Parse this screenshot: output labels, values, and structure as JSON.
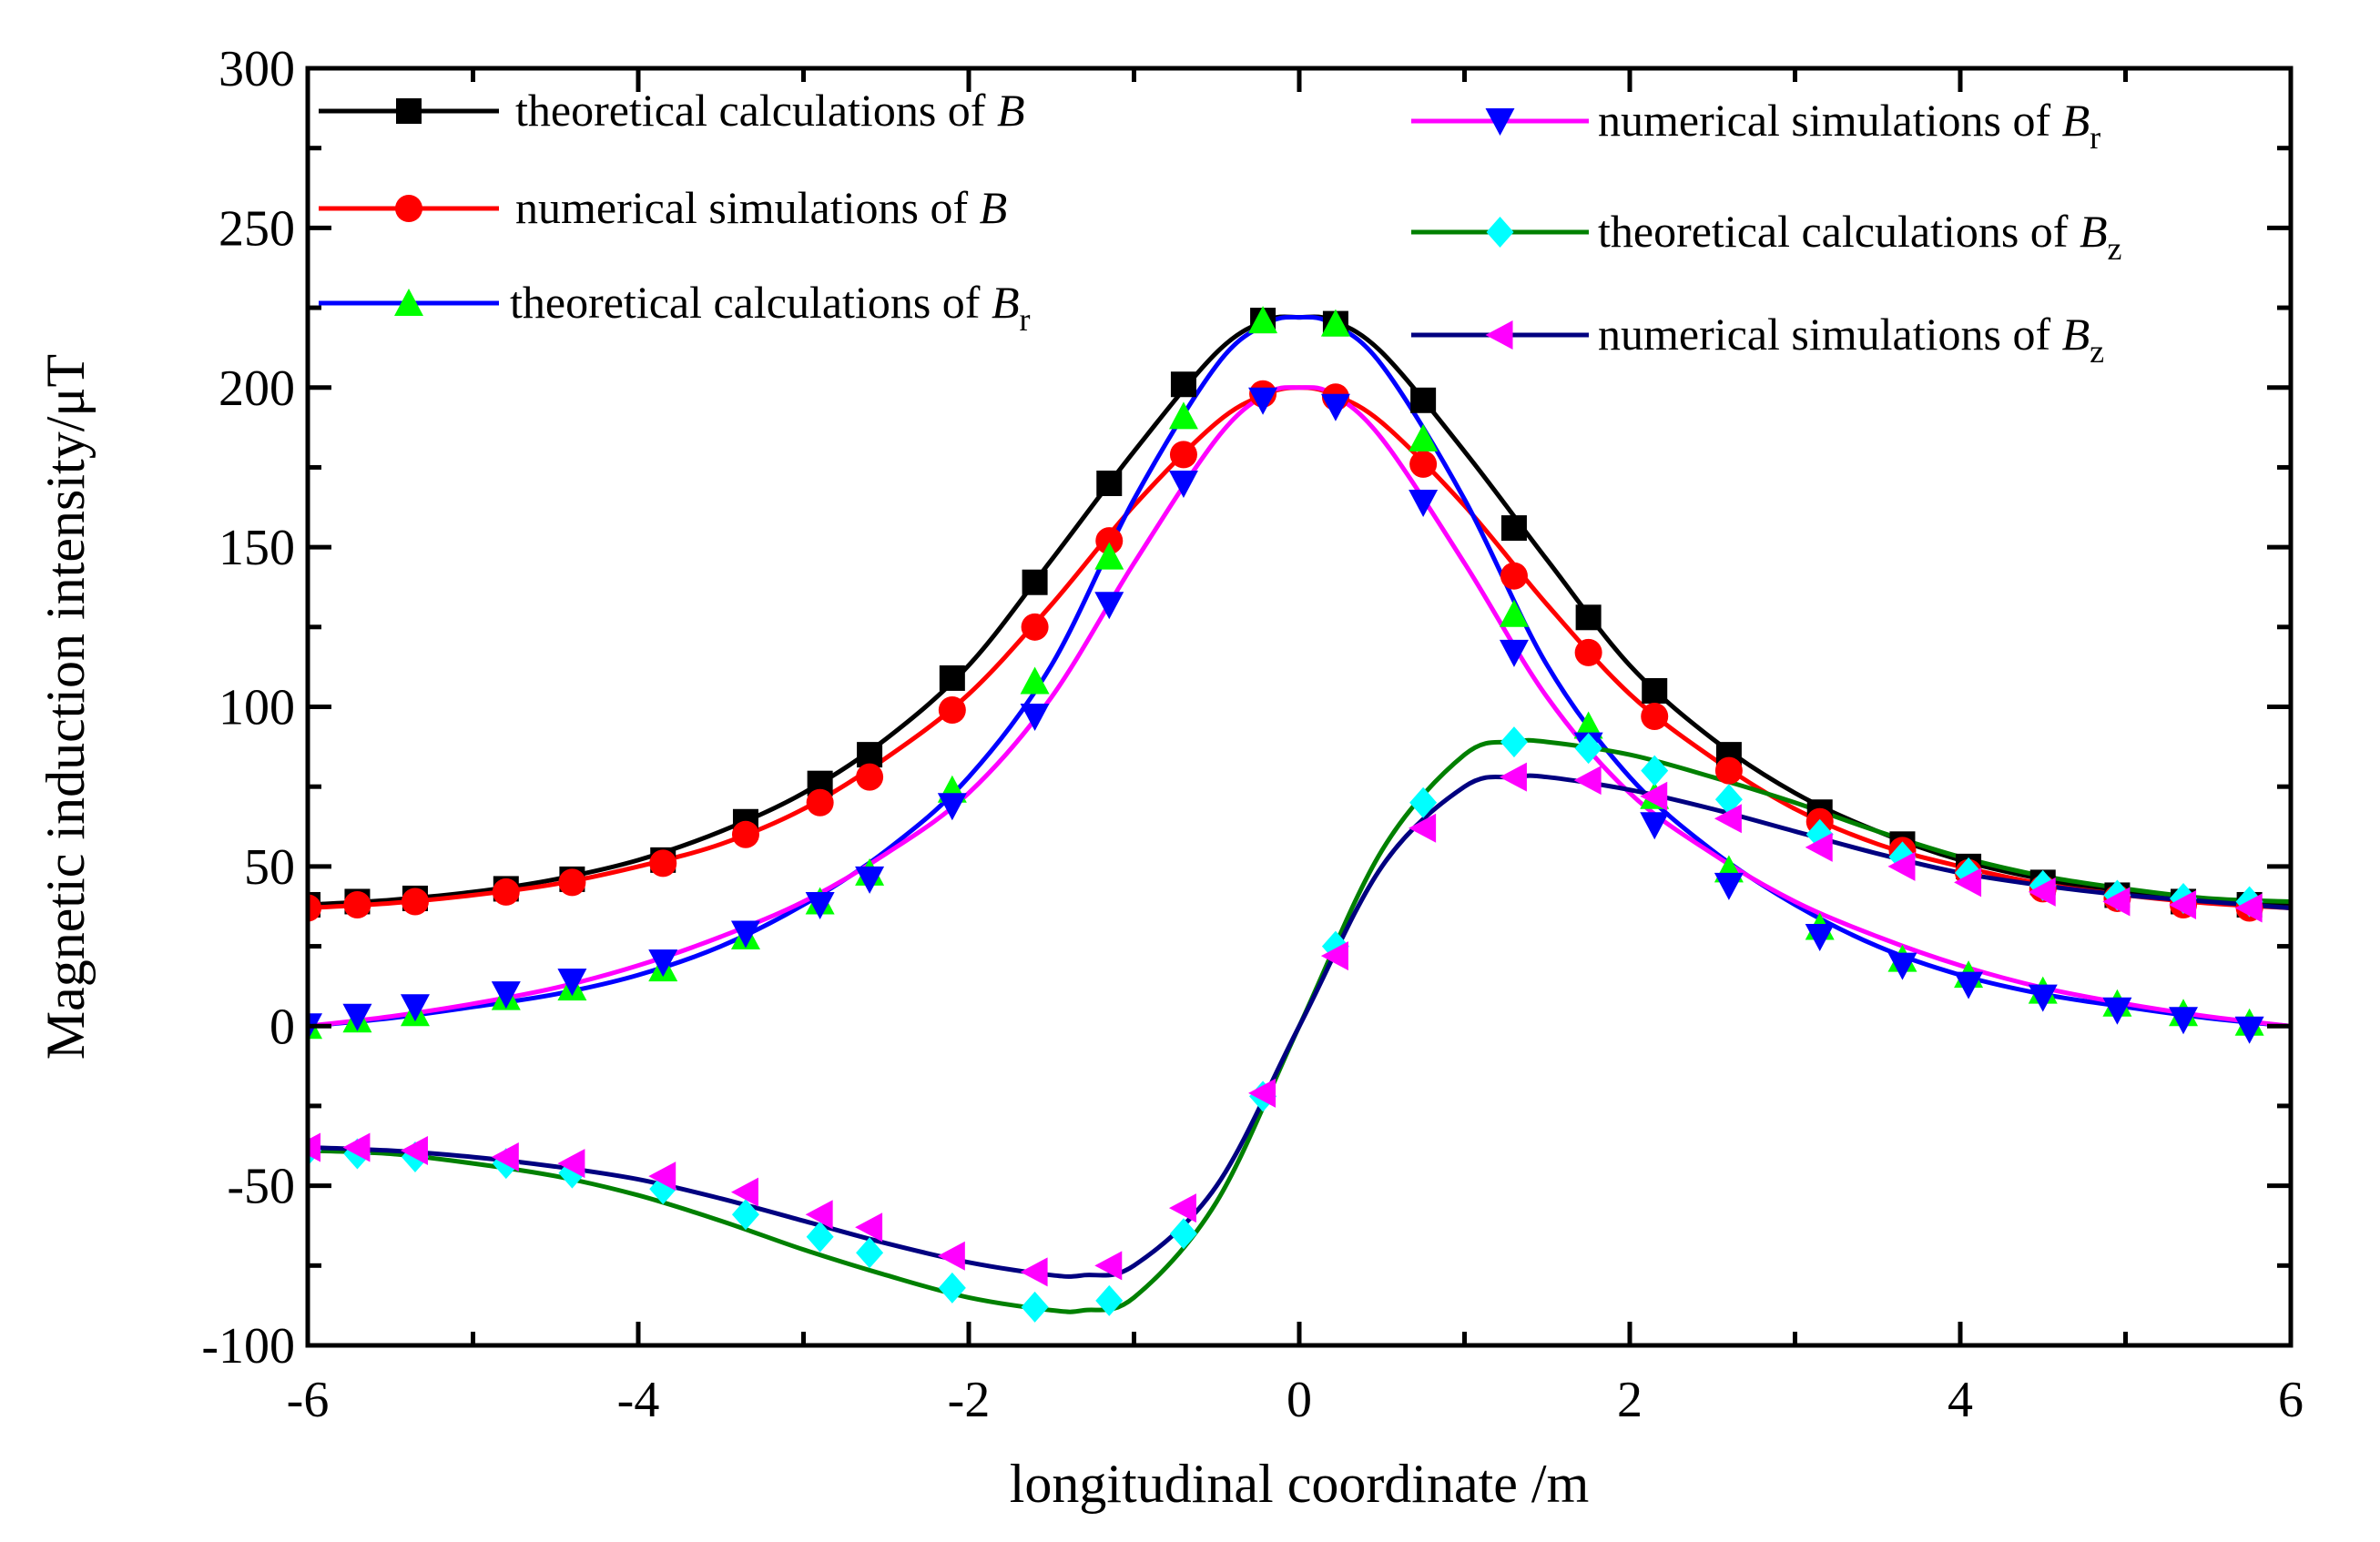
{
  "chart_data": {
    "type": "line",
    "xlabel": "longitudinal coordinate /m",
    "ylabel": "Magnetic induction intensity/μT",
    "xlim": [
      -6,
      6
    ],
    "ylim": [
      -100,
      300
    ],
    "xticks": [
      "-6",
      "-4",
      "-2",
      "0",
      "2",
      "4",
      "6"
    ],
    "yticks": [
      "-100",
      "-50",
      "0",
      "50",
      "100",
      "150",
      "200",
      "250",
      "300"
    ],
    "grid": false,
    "legend_position": "top",
    "series": [
      {
        "name": "theoretical calculations of B",
        "legend_main": "theoretical calculations of ",
        "legend_var": "B",
        "legend_sub": "",
        "color": "#000000",
        "marker": "square",
        "marker_color": "#000000",
        "curve_x": [
          -6,
          -5.5,
          -5,
          -4.5,
          -4,
          -3.5,
          -3,
          -2.5,
          -2,
          -1.5,
          -1,
          -0.5,
          -0.2,
          0,
          0.2,
          0.5,
          1,
          1.5,
          2,
          2.5,
          3,
          3.5,
          4,
          4.5,
          5,
          5.5,
          6
        ],
        "curve_y": [
          38,
          39.5,
          42,
          46,
          52,
          61,
          73,
          90,
          113,
          146,
          180,
          211,
          221,
          222,
          221,
          211,
          180,
          146,
          113,
          90,
          73,
          61,
          52,
          46,
          42,
          39.5,
          38
        ],
        "marker_x": [
          -6,
          -5.7,
          -5.35,
          -4.8,
          -4.4,
          -3.85,
          -3.35,
          -2.9,
          -2.6,
          -2.1,
          -1.6,
          -1.15,
          -0.7,
          -0.22,
          0.22,
          0.75,
          1.3,
          1.75,
          2.15,
          2.6,
          3.15,
          3.65,
          4.05,
          4.5,
          4.95,
          5.35,
          5.75
        ],
        "marker_y": [
          38,
          39,
          40,
          43,
          46,
          52,
          64,
          76,
          85,
          109,
          139,
          170,
          201,
          221,
          220,
          196,
          156,
          128,
          105,
          85,
          67,
          57,
          50,
          45,
          41,
          39,
          38
        ]
      },
      {
        "name": "numerical simulations of B",
        "legend_main": "numerical simulations of ",
        "legend_var": "B",
        "legend_sub": "",
        "color": "#ff0000",
        "marker": "circle",
        "marker_color": "#ff0000",
        "curve_x": [
          -6,
          -5.5,
          -5,
          -4.5,
          -4,
          -3.5,
          -3,
          -2.5,
          -2,
          -1.5,
          -1,
          -0.5,
          -0.2,
          0,
          0.2,
          0.5,
          1,
          1.5,
          2,
          2.5,
          3,
          3.5,
          4,
          4.5,
          5,
          5.5,
          6
        ],
        "curve_y": [
          37,
          38.5,
          41,
          44.5,
          50,
          57,
          68,
          84,
          104,
          132,
          163,
          189,
          198,
          200,
          198,
          189,
          163,
          132,
          104,
          84,
          68,
          57,
          50,
          44.5,
          41,
          38.5,
          37
        ],
        "marker_x": [
          -6,
          -5.7,
          -5.35,
          -4.8,
          -4.4,
          -3.85,
          -3.35,
          -2.9,
          -2.6,
          -2.1,
          -1.6,
          -1.15,
          -0.7,
          -0.22,
          0.22,
          0.75,
          1.3,
          1.75,
          2.15,
          2.6,
          3.15,
          3.65,
          4.05,
          4.5,
          4.95,
          5.35,
          5.75
        ],
        "marker_y": [
          37,
          38,
          39,
          42,
          45,
          51,
          60,
          70,
          78,
          99,
          125,
          152,
          179,
          198,
          197,
          176,
          141,
          117,
          97,
          80,
          64,
          55,
          48,
          43,
          40,
          38,
          37
        ]
      },
      {
        "name": "theoretical calculations of Br",
        "legend_main": "theoretical calculations of ",
        "legend_var": "B",
        "legend_sub": "r",
        "color": "#0000ff",
        "marker": "triangle-up",
        "marker_color": "#00ff00",
        "curve_x": [
          -6,
          -5.5,
          -5,
          -4.5,
          -4,
          -3.5,
          -3,
          -2.5,
          -2,
          -1.5,
          -1,
          -0.5,
          -0.2,
          0,
          0.2,
          0.5,
          1,
          1.5,
          2,
          2.5,
          3,
          3.5,
          4,
          4.5,
          5,
          5.5,
          6
        ],
        "curve_y": [
          0,
          2.5,
          6,
          10,
          16,
          25,
          38,
          55,
          78,
          113,
          165,
          207,
          220,
          222,
          220,
          207,
          165,
          113,
          78,
          55,
          38,
          25,
          16,
          10,
          6,
          2.5,
          0
        ],
        "marker_x": [
          -6,
          -5.7,
          -5.35,
          -4.8,
          -4.4,
          -3.85,
          -3.35,
          -2.9,
          -2.6,
          -2.1,
          -1.6,
          -1.15,
          -0.7,
          -0.22,
          0.22,
          0.75,
          1.3,
          1.75,
          2.15,
          2.6,
          3.15,
          3.65,
          4.05,
          4.5,
          4.95,
          5.35,
          5.75
        ],
        "marker_y": [
          0,
          2,
          4,
          9,
          12,
          18,
          28,
          39,
          48,
          74,
          108,
          147,
          191,
          221,
          220,
          184,
          129,
          94,
          72,
          49,
          31,
          21,
          16,
          11,
          7,
          4,
          1
        ]
      },
      {
        "name": "numerical simulations of Br",
        "legend_main": "numerical simulations of ",
        "legend_var": "B",
        "legend_sub": "r",
        "color": "#ff00ff",
        "marker": "triangle-down",
        "marker_color": "#0000ff",
        "curve_x": [
          -6,
          -5.5,
          -5,
          -4.5,
          -4,
          -3.5,
          -3,
          -2.5,
          -2,
          -1.5,
          -1,
          -0.5,
          -0.2,
          0,
          0.2,
          0.5,
          1,
          1.5,
          2,
          2.5,
          3,
          3.5,
          4,
          4.5,
          5,
          5.5,
          6
        ],
        "curve_y": [
          0,
          3,
          7,
          12,
          19,
          28,
          39,
          54,
          73,
          103,
          145,
          184,
          198,
          200,
          198,
          184,
          145,
          103,
          73,
          54,
          39,
          28,
          19,
          12,
          7,
          3,
          0
        ],
        "marker_x": [
          -6,
          -5.7,
          -5.35,
          -4.8,
          -4.4,
          -3.85,
          -3.35,
          -2.9,
          -2.6,
          -2.1,
          -1.6,
          -1.15,
          -0.7,
          -0.22,
          0.22,
          0.75,
          1.3,
          1.75,
          2.15,
          2.6,
          3.15,
          3.65,
          4.05,
          4.5,
          4.95,
          5.35,
          5.75
        ],
        "marker_y": [
          0,
          3,
          6,
          10,
          14,
          20,
          29,
          38,
          46,
          69,
          97,
          132,
          170,
          196,
          194,
          164,
          117,
          88,
          63,
          44,
          28,
          19,
          13,
          9,
          5,
          2,
          -1
        ]
      },
      {
        "name": "theoretical calculations of Bz",
        "legend_main": "theoretical calculations of ",
        "legend_var": "B",
        "legend_sub": "z",
        "color": "#008000",
        "marker": "diamond",
        "marker_color": "#00ffff",
        "curve_x": [
          -6,
          -5.5,
          -5,
          -4.5,
          -4,
          -3.5,
          -3,
          -2.5,
          -2,
          -1.5,
          -1.3,
          -1,
          -0.5,
          0,
          0.5,
          1,
          1.3,
          1.5,
          2,
          2.5,
          3,
          3.5,
          4,
          4.5,
          5,
          5.5,
          6
        ],
        "curve_y": [
          -39,
          -40,
          -43,
          -47,
          -53,
          -61,
          -70,
          -78,
          -85,
          -89,
          -89,
          -85,
          -55,
          0,
          55,
          85,
          89,
          89,
          85,
          78,
          70,
          61,
          53,
          47,
          43,
          40,
          39
        ],
        "marker_x": [
          -6,
          -5.7,
          -5.35,
          -4.8,
          -4.4,
          -3.85,
          -3.35,
          -2.9,
          -2.6,
          -2.1,
          -1.6,
          -1.15,
          -0.7,
          -0.22,
          0.22,
          0.75,
          1.3,
          1.75,
          2.15,
          2.6,
          3.15,
          3.65,
          4.05,
          4.5,
          4.95,
          5.35,
          5.75
        ],
        "marker_y": [
          -39,
          -40,
          -41,
          -43,
          -46,
          -51,
          -59,
          -66,
          -71,
          -82,
          -88,
          -86,
          -65,
          -22,
          25,
          70,
          89,
          87,
          80,
          71,
          60,
          53,
          48,
          44,
          41,
          40,
          39
        ]
      },
      {
        "name": "numerical simulations of Bz",
        "legend_main": "numerical simulations of ",
        "legend_var": "B",
        "legend_sub": "z",
        "color": "#000080",
        "marker": "triangle-left",
        "marker_color": "#ff00ff",
        "curve_x": [
          -6,
          -5.5,
          -5,
          -4.5,
          -4,
          -3.5,
          -3,
          -2.5,
          -2,
          -1.5,
          -1.3,
          -1,
          -0.5,
          0,
          0.5,
          1,
          1.3,
          1.5,
          2,
          2.5,
          3,
          3.5,
          4,
          4.5,
          5,
          5.5,
          6
        ],
        "curve_y": [
          -38,
          -39,
          -41,
          -44,
          -48,
          -54,
          -61,
          -68,
          -74,
          -78,
          -78,
          -75,
          -50,
          0,
          50,
          75,
          78,
          78,
          74,
          68,
          61,
          54,
          48,
          44,
          41,
          39,
          37
        ],
        "marker_x": [
          -6,
          -5.7,
          -5.35,
          -4.8,
          -4.4,
          -3.85,
          -3.35,
          -2.9,
          -2.6,
          -2.1,
          -1.6,
          -1.15,
          -0.7,
          -0.22,
          0.22,
          0.75,
          1.3,
          1.75,
          2.15,
          2.6,
          3.15,
          3.65,
          4.05,
          4.5,
          4.95,
          5.35,
          5.75
        ],
        "marker_y": [
          -38,
          -38,
          -39,
          -41,
          -43,
          -47,
          -52,
          -59,
          -63,
          -72,
          -77,
          -75,
          -57,
          -21,
          22,
          62,
          78,
          77,
          72,
          65,
          56,
          50,
          45,
          42,
          39,
          38,
          37
        ]
      }
    ]
  }
}
